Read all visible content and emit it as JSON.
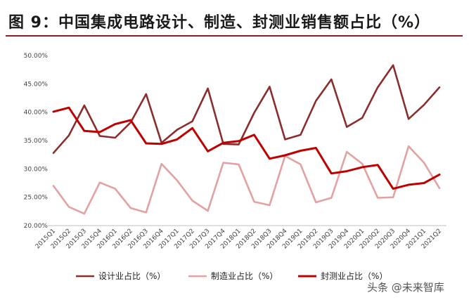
{
  "title": "图 9：中国集成电路设计、制造、封测业销售额占比（%）",
  "watermark": "头条 @未来智库",
  "chart_data": {
    "type": "line",
    "title": "图 9：中国集成电路设计、制造、封测业销售额占比（%）",
    "xlabel": "",
    "ylabel": "",
    "ylim": [
      20,
      50
    ],
    "yticks": [
      "20.00%",
      "25.00%",
      "30.00%",
      "35.00%",
      "40.00%",
      "45.00%",
      "50.00%"
    ],
    "grid": false,
    "legend": "bottom",
    "categories": [
      "2015Q1",
      "2015Q2",
      "2015Q3",
      "2015Q4",
      "2016Q1",
      "2016Q2",
      "2016Q3",
      "2016Q4",
      "2017Q1",
      "2017Q2",
      "2017Q3",
      "2017Q4",
      "2018Q1",
      "2018Q2",
      "2018Q3",
      "2018Q4",
      "2019Q1",
      "2019Q2",
      "2019Q3",
      "2019Q4",
      "2020Q1",
      "2020Q2",
      "2020Q3",
      "2020Q4",
      "2021Q1",
      "2021Q2"
    ],
    "series": [
      {
        "name": "设计业占比（%）",
        "color": "#8b2d2d",
        "values": [
          32.8,
          35.9,
          41.2,
          35.8,
          35.5,
          38.2,
          43.2,
          34.6,
          36.9,
          38.4,
          44.2,
          34.4,
          34.3,
          39.9,
          44.5,
          35.2,
          36.0,
          42.0,
          45.8,
          37.4,
          39.0,
          44.4,
          48.3,
          38.8,
          41.3,
          44.4
        ]
      },
      {
        "name": "制造业占比（%）",
        "color": "#e3a1a1",
        "values": [
          27.0,
          23.3,
          22.1,
          27.6,
          26.5,
          23.1,
          22.3,
          30.9,
          28.0,
          24.4,
          22.6,
          31.1,
          30.8,
          24.2,
          23.6,
          32.3,
          30.8,
          24.1,
          24.9,
          33.0,
          30.9,
          24.9,
          25.0,
          34.0,
          31.1,
          26.6
        ]
      },
      {
        "name": "封测业占比（%）",
        "color": "#c00000",
        "values": [
          40.1,
          40.8,
          36.7,
          36.5,
          37.9,
          38.6,
          34.5,
          34.4,
          35.2,
          37.2,
          33.1,
          34.6,
          34.9,
          36.0,
          31.8,
          32.4,
          33.2,
          33.7,
          29.2,
          29.6,
          30.3,
          30.7,
          26.5,
          27.2,
          27.5,
          29.0
        ]
      }
    ]
  }
}
